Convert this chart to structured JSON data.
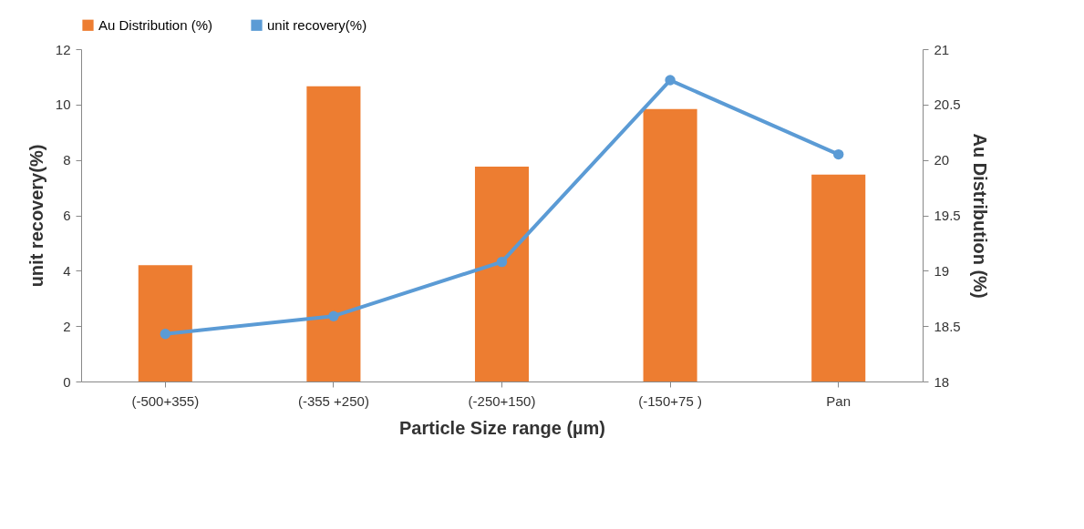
{
  "chart_data": {
    "type": "bar",
    "xlabel": "Particle Size range (µm)",
    "ylabel": "unit recovery(%)",
    "y2label": "Au Distribution (%)",
    "categories": [
      "(-500+355)",
      "(-355 +250)",
      "(-250+150)",
      "(-150+75 )",
      "Pan"
    ],
    "series": [
      {
        "name": "Au Distribution (%)",
        "color": "#ed7d31",
        "values": [
          4.2,
          10.66,
          7.76,
          9.84,
          7.47
        ]
      },
      {
        "name": "unit recovery(%)",
        "type": "line",
        "axis": "y2",
        "color": "#5b9bd5",
        "values": [
          18.43,
          18.59,
          19.08,
          20.72,
          20.05
        ]
      }
    ],
    "ylim": [
      0,
      12
    ],
    "yticks": [
      0,
      2,
      4,
      6,
      8,
      10,
      12
    ],
    "y2lim": [
      18,
      21
    ],
    "y2ticks": [
      18,
      18.5,
      19,
      19.5,
      20,
      20.5,
      21
    ],
    "legend": "top",
    "marker": "circle",
    "line_style": "solid"
  }
}
